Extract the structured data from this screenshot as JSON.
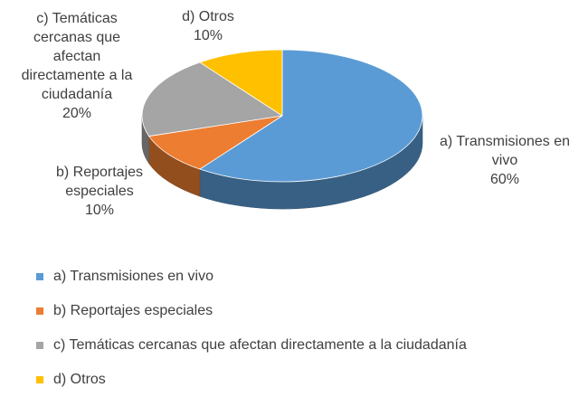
{
  "chart_data": {
    "type": "pie",
    "style": "3d",
    "title": "",
    "legend_position": "bottom",
    "slices": [
      {
        "label": "a) Transmisiones en vivo",
        "label_lines": [
          "a) Transmisiones en",
          "vivo"
        ],
        "value": 60,
        "value_label": "60%",
        "color": "#5b9bd5"
      },
      {
        "label": "b) Reportajes especiales",
        "label_lines": [
          "b) Reportajes",
          "especiales"
        ],
        "value": 10,
        "value_label": "10%",
        "color": "#ed7d31"
      },
      {
        "label": "c) Temáticas cercanas que afectan directamente a la ciudadanía",
        "label_lines": [
          "c) Temáticas",
          "cercanas que",
          "afectan",
          "directamente a la",
          "ciudadanía"
        ],
        "value": 20,
        "value_label": "20%",
        "color": "#a5a5a5"
      },
      {
        "label": "d) Otros",
        "label_lines": [
          "d) Otros"
        ],
        "value": 10,
        "value_label": "10%",
        "color": "#ffc000"
      }
    ]
  }
}
